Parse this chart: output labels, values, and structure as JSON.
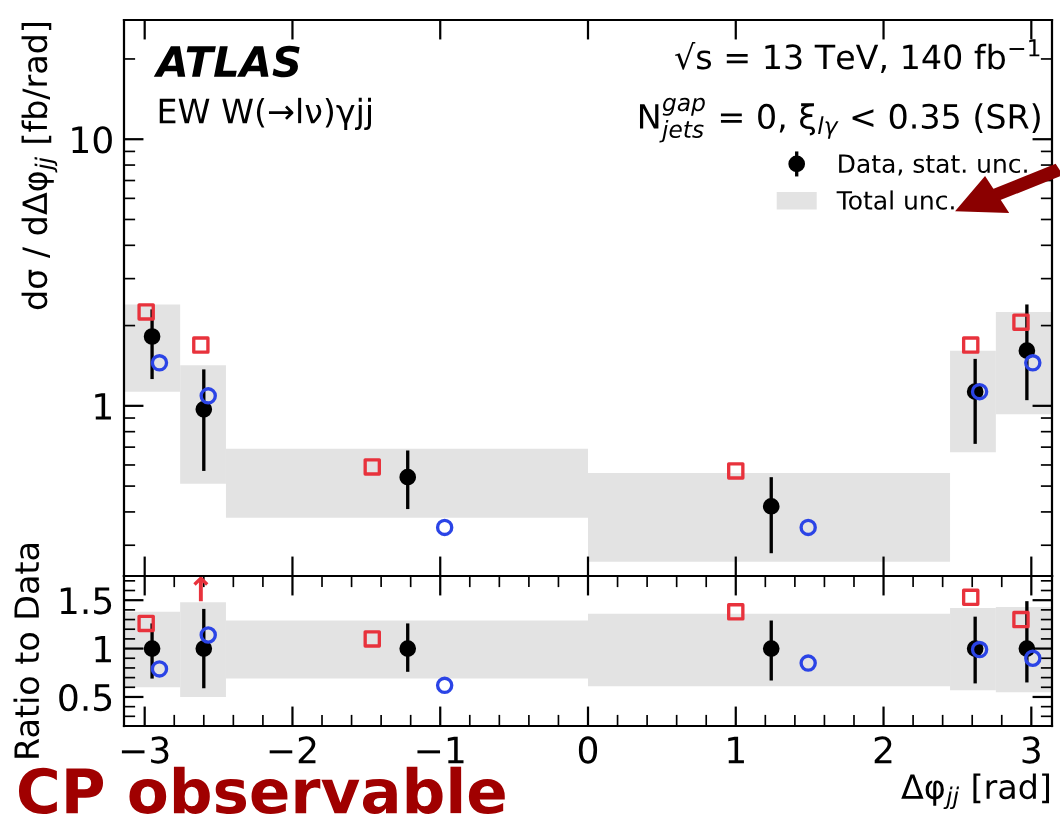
{
  "chart_data": [
    {
      "type": "scatter",
      "title": "ATLAS",
      "subtitle": "EW W(→lν)γjj",
      "ylabel": "dσ / dΔφ$_{jj}$ [fb/rad]",
      "annotations": [
        "√s = 13 TeV, 140 fb$^{−1}$",
        "N$^{gap}$$_{jets}$ = 0, ξ$_{lγ}$ < 0.35 (SR)"
      ],
      "log": "y",
      "xlim": [
        -3.14,
        3.14
      ],
      "ylim": [
        0.23,
        28
      ],
      "yticks": [
        1,
        10
      ],
      "tick_labels": "y",
      "legend": "top right",
      "series": [
        {
          "name": "Data, stat. unc.",
          "color": "#000000",
          "marker": "circle",
          "x": [
            -2.95,
            -2.6,
            -1.22,
            1.24,
            2.62,
            2.97
          ],
          "values": [
            1.82,
            0.97,
            0.54,
            0.42,
            1.13,
            1.61
          ],
          "errors": [
            [
              1.26,
              2.3
            ],
            [
              0.57,
              1.37
            ],
            [
              0.41,
              0.68
            ],
            [
              0.28,
              0.54
            ],
            [
              0.72,
              1.5
            ],
            [
              1.05,
              2.4
            ]
          ]
        },
        {
          "name": "Total unc.",
          "type": "histogram",
          "color": "#e3e3e3",
          "bins": [
            -3.14,
            -2.76,
            -2.45,
            0,
            2.45,
            2.76,
            3.14
          ],
          "base": [
            1.13,
            0.51,
            0.38,
            0.26,
            0.67,
            0.93
          ],
          "values": [
            1.27,
            0.91,
            0.31,
            0.3,
            0.94,
            1.32
          ]
        },
        {
          "color": "#2b44e6",
          "marker": "circle",
          "x": [
            -2.9,
            -2.57,
            -0.97,
            1.49,
            2.65,
            3.01
          ],
          "values": [
            1.45,
            1.09,
            0.35,
            0.35,
            1.13,
            1.45
          ]
        },
        {
          "color": "#e8323c",
          "marker": "square",
          "x": [
            -2.99,
            -2.62,
            -1.46,
            1.0,
            2.59,
            2.93
          ],
          "values": [
            2.25,
            1.69,
            0.59,
            0.57,
            1.69,
            2.06
          ]
        }
      ]
    },
    {
      "type": "scatter",
      "xlabel": "Δφ$_{jj}$ [rad]",
      "ylabel": "Ratio to Data",
      "annotations": [
        "CP observable",
        "↑"
      ],
      "xlim": [
        -3.14,
        3.14
      ],
      "ylim": [
        0.2,
        1.75
      ],
      "yticks": [
        0.5,
        1,
        1.5
      ],
      "xticks": [
        {
          "value": -3,
          "label": "−3"
        },
        {
          "value": -2,
          "label": "−2"
        },
        {
          "value": -1,
          "label": "−1"
        },
        0,
        1,
        2,
        3
      ],
      "series": [
        {
          "color": "#000000",
          "marker": "circle",
          "x": [
            -2.95,
            -2.6,
            -1.22,
            1.24,
            2.62,
            2.97
          ],
          "values": [
            1,
            1,
            1,
            1,
            1,
            1
          ],
          "errors": [
            [
              0.69,
              1.26
            ],
            [
              0.59,
              1.41
            ],
            [
              0.76,
              1.26
            ],
            [
              0.67,
              1.29
            ],
            [
              0.64,
              1.33
            ],
            [
              0.65,
              1.49
            ]
          ]
        },
        {
          "type": "histogram",
          "color": "#e3e3e3",
          "bins": [
            -3.14,
            -2.76,
            -2.45,
            0,
            2.45,
            2.76,
            3.14
          ],
          "base": [
            0.6,
            0.5,
            0.69,
            0.61,
            0.57,
            0.55
          ],
          "values": [
            0.78,
            0.98,
            0.6,
            0.75,
            0.85,
            0.88
          ]
        },
        {
          "color": "#2b44e6",
          "marker": "circle",
          "x": [
            -2.9,
            -2.57,
            -0.97,
            1.49,
            2.65,
            3.01
          ],
          "values": [
            0.79,
            1.14,
            0.62,
            0.85,
            0.99,
            0.9
          ]
        },
        {
          "color": "#e8323c",
          "marker": "square",
          "x": [
            -2.99,
            -2.62,
            -1.46,
            1.0,
            2.59,
            2.93
          ],
          "values": [
            1.26,
            null,
            1.1,
            1.38,
            1.53,
            1.3
          ]
        }
      ]
    }
  ]
}
